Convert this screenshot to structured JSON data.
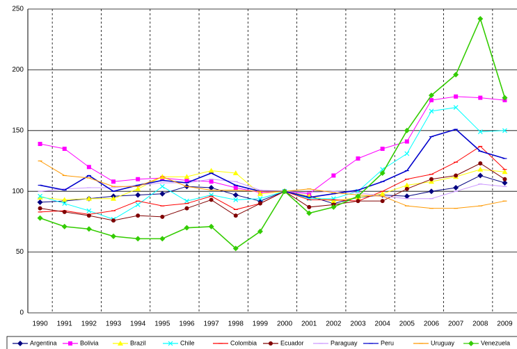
{
  "chart_data": {
    "type": "line",
    "categories": [
      "1990",
      "1991",
      "1992",
      "1993",
      "1994",
      "1995",
      "1996",
      "1997",
      "1998",
      "1999",
      "2000",
      "2001",
      "2002",
      "2003",
      "2004",
      "2005",
      "2006",
      "2007",
      "2008",
      "2009"
    ],
    "ylim": [
      0,
      250
    ],
    "yticks": [
      0,
      50,
      100,
      150,
      200,
      250
    ],
    "grid": true,
    "legend": "bottom",
    "series": [
      {
        "name": "Argentina",
        "color": "#000080",
        "marker": "diamond",
        "values": [
          91,
          92,
          94,
          96,
          97,
          98,
          104,
          103,
          97,
          92,
          100,
          96,
          90,
          95,
          97,
          96,
          100,
          103,
          113,
          107
        ]
      },
      {
        "name": "Bolivia",
        "color": "#ff00ff",
        "marker": "square",
        "values": [
          139,
          135,
          120,
          108,
          110,
          111,
          109,
          108,
          103,
          99,
          100,
          98,
          113,
          127,
          135,
          141,
          175,
          178,
          177,
          175
        ]
      },
      {
        "name": "Brazil",
        "color": "#ffff00",
        "marker": "triangle",
        "values": [
          95,
          93,
          94,
          94,
          102,
          112,
          112,
          117,
          115,
          98,
          100,
          96,
          92,
          95,
          98,
          105,
          108,
          112,
          118,
          116
        ]
      },
      {
        "name": "Chile",
        "color": "#00ffff",
        "marker": "cross",
        "values": [
          96,
          90,
          84,
          77,
          89,
          104,
          92,
          97,
          93,
          94,
          100,
          94,
          94,
          100,
          118,
          131,
          166,
          169,
          149,
          150
        ]
      },
      {
        "name": "Colombia",
        "color": "#ff0000",
        "marker": "dash",
        "values": [
          83,
          84,
          81,
          84,
          92,
          88,
          90,
          96,
          85,
          90,
          100,
          93,
          93,
          92,
          100,
          110,
          114,
          124,
          137,
          118
        ]
      },
      {
        "name": "Ecuador",
        "color": "#800000",
        "marker": "circle",
        "values": [
          86,
          83,
          80,
          76,
          80,
          79,
          86,
          93,
          80,
          90,
          100,
          87,
          89,
          92,
          92,
          102,
          110,
          113,
          123,
          110
        ]
      },
      {
        "name": "Paraguay",
        "color": "#cc99ff",
        "marker": "dash",
        "values": [
          100,
          102,
          103,
          103,
          105,
          107,
          107,
          110,
          108,
          101,
          100,
          99,
          100,
          99,
          96,
          94,
          94,
          100,
          106,
          104
        ]
      },
      {
        "name": "Peru",
        "color": "#0000cc",
        "marker": "dash",
        "values": [
          105,
          101,
          113,
          100,
          105,
          109,
          107,
          115,
          105,
          100,
          100,
          95,
          98,
          101,
          108,
          117,
          145,
          151,
          133,
          127
        ]
      },
      {
        "name": "Uruguay",
        "color": "#ff9900",
        "marker": "dash",
        "values": [
          125,
          113,
          111,
          104,
          104,
          112,
          104,
          101,
          101,
          100,
          100,
          102,
          99,
          97,
          96,
          88,
          86,
          86,
          88,
          92
        ]
      },
      {
        "name": "Venezuela",
        "color": "#33cc00",
        "marker": "diamond",
        "values": [
          78,
          71,
          69,
          63,
          61,
          61,
          70,
          71,
          53,
          67,
          100,
          82,
          87,
          96,
          115,
          150,
          179,
          196,
          242,
          177
        ]
      }
    ]
  }
}
